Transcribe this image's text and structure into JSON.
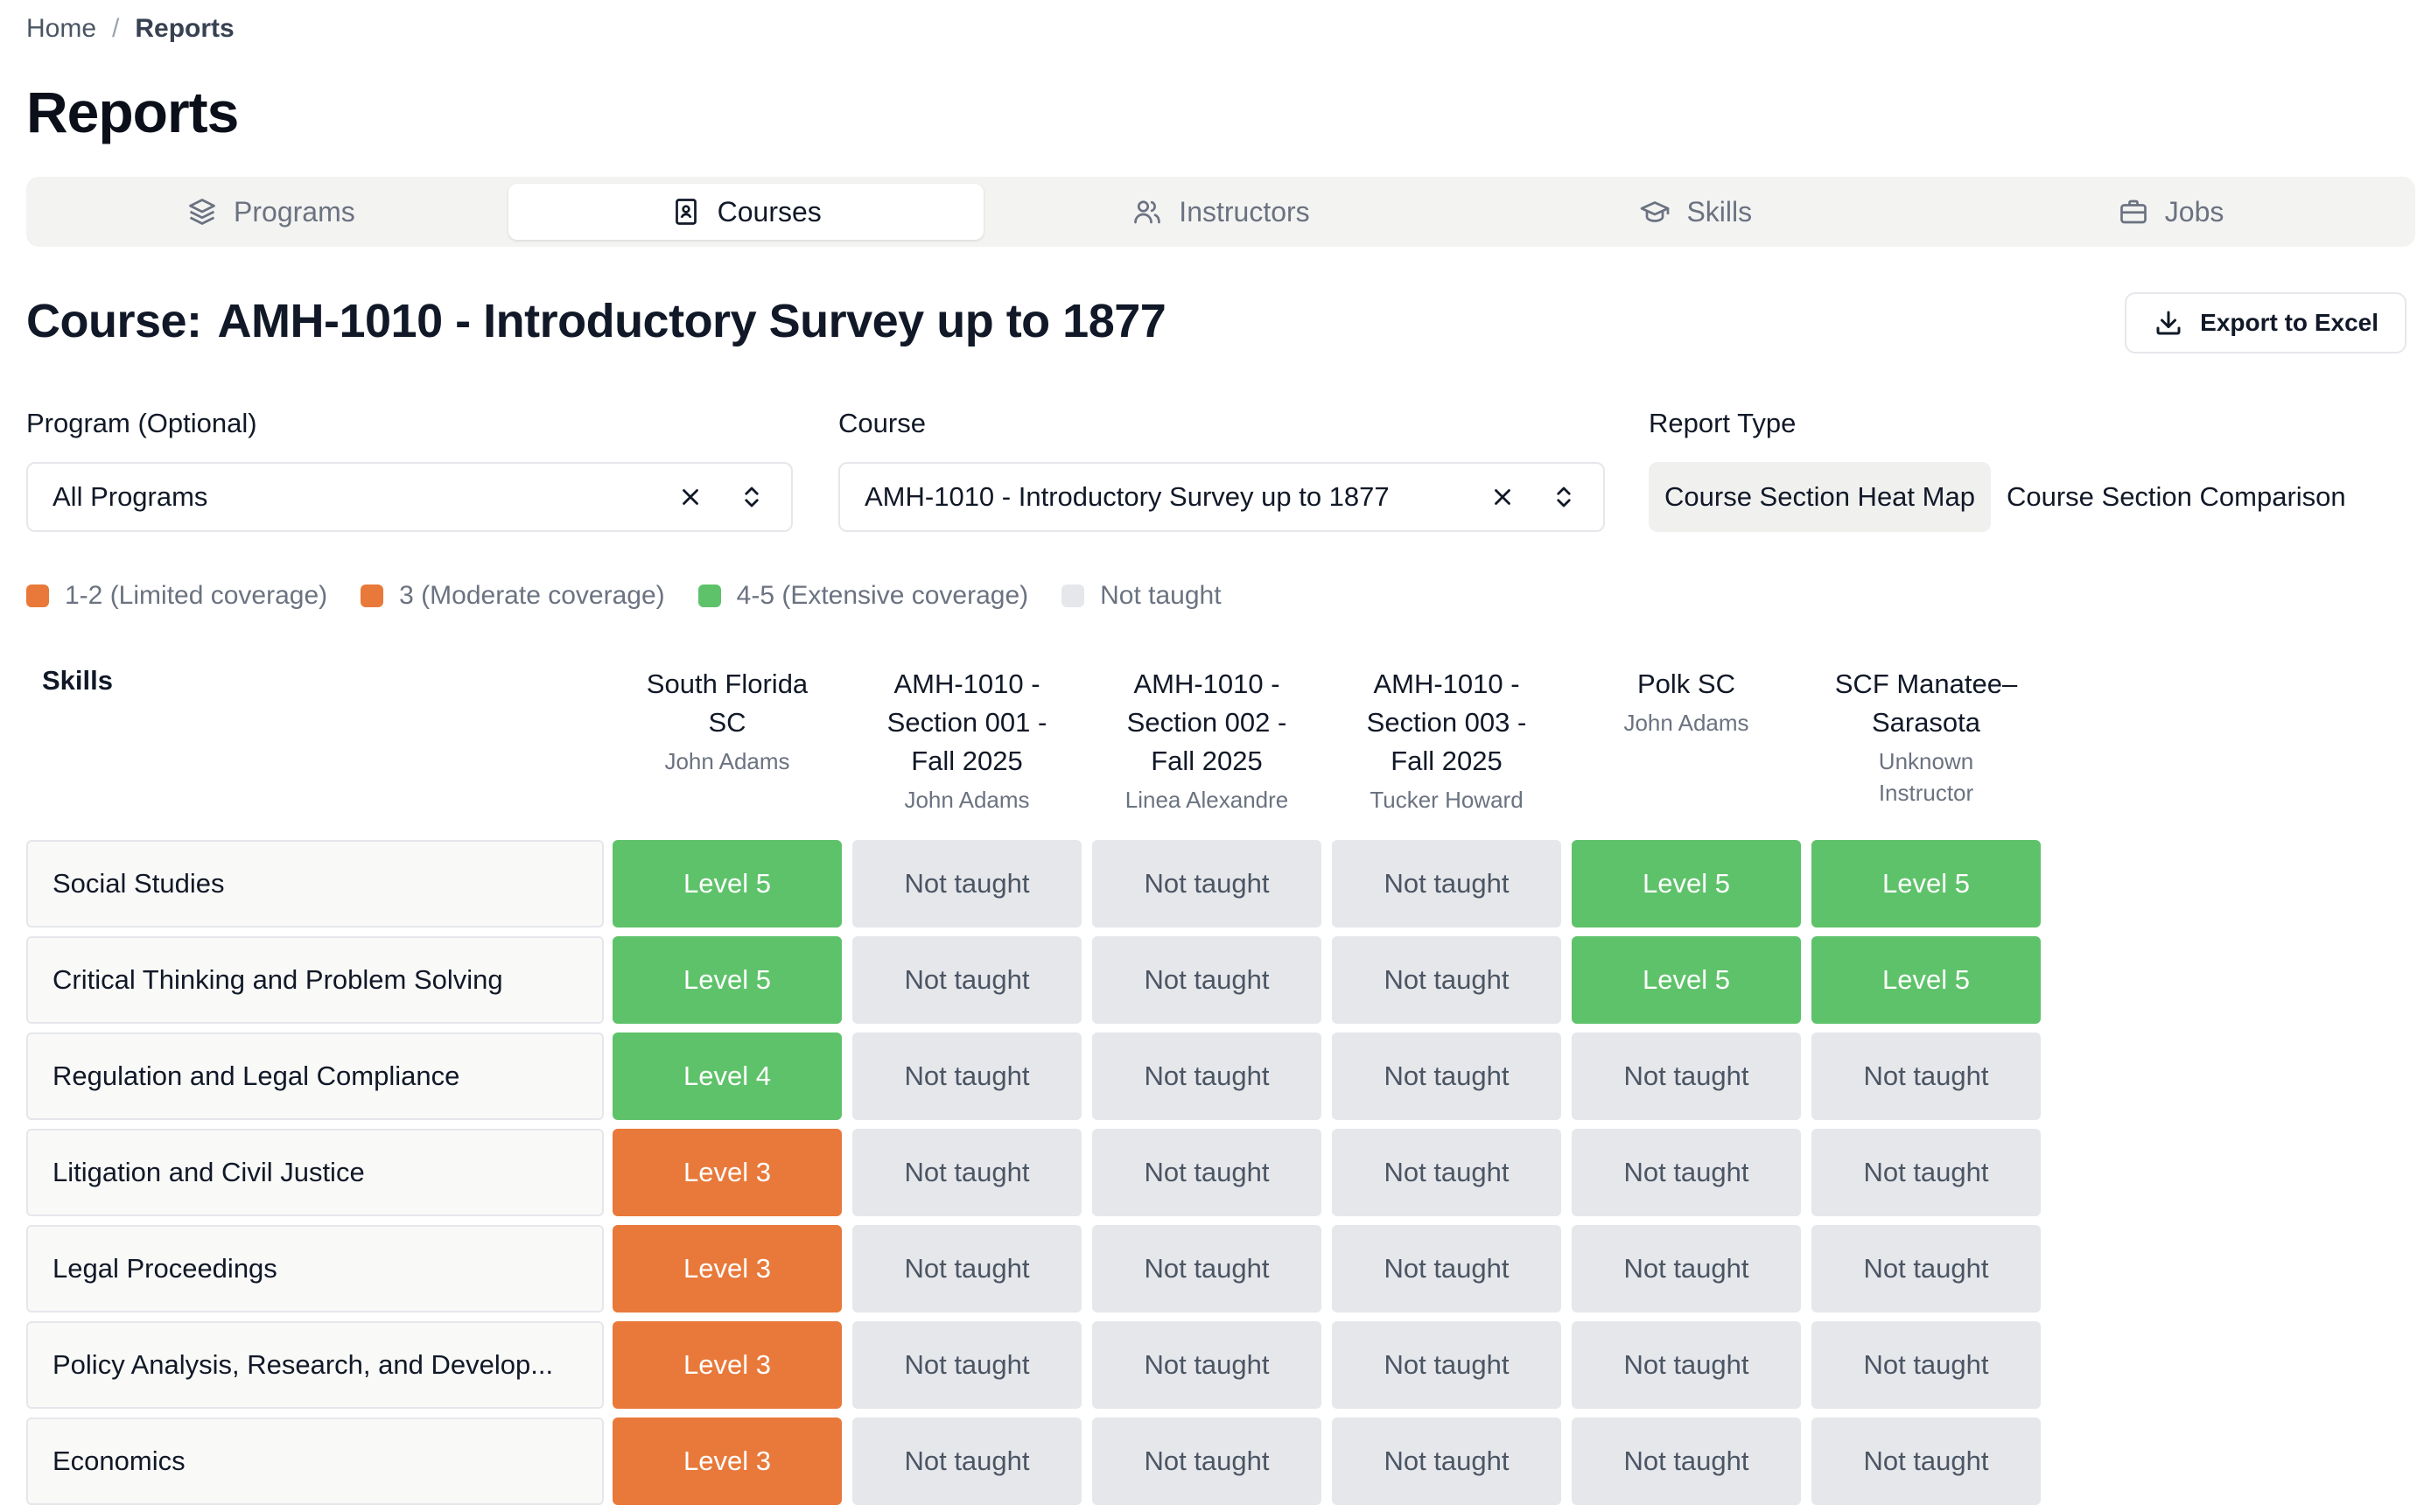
{
  "breadcrumb": {
    "home": "Home",
    "separator": "/",
    "current": "Reports"
  },
  "page_title": "Reports",
  "tabs": [
    {
      "label": "Programs",
      "icon": "layers-icon",
      "active": false
    },
    {
      "label": "Courses",
      "icon": "book-icon",
      "active": true
    },
    {
      "label": "Instructors",
      "icon": "users-icon",
      "active": false
    },
    {
      "label": "Skills",
      "icon": "graduation-cap-icon",
      "active": false
    },
    {
      "label": "Jobs",
      "icon": "briefcase-icon",
      "active": false
    }
  ],
  "course": {
    "prefix": "Course:",
    "name": "AMH-1010 - Introductory Survey up to 1877"
  },
  "export_label": "Export to Excel",
  "filters": {
    "program": {
      "label": "Program (Optional)",
      "value": "All Programs"
    },
    "course": {
      "label": "Course",
      "value": "AMH-1010 - Introductory Survey up to 1877"
    },
    "report_type": {
      "label": "Report Type",
      "options": [
        "Course Section Heat Map",
        "Course Section Comparison"
      ],
      "selected": "Course Section Heat Map"
    }
  },
  "legend": [
    {
      "label": "1-2 (Limited coverage)",
      "color": "#e8793a"
    },
    {
      "label": "3 (Moderate coverage)",
      "color": "#e8793a"
    },
    {
      "label": "4-5 (Extensive coverage)",
      "color": "#5ec26a"
    },
    {
      "label": "Not taught",
      "color": "#e5e7eb"
    }
  ],
  "table": {
    "skills_header": "Skills",
    "columns": [
      {
        "title_lines": [
          "South Florida",
          "SC"
        ],
        "instructor_lines": [
          "John Adams"
        ]
      },
      {
        "title_lines": [
          "AMH-1010 -",
          "Section 001 -",
          "Fall 2025"
        ],
        "instructor_lines": [
          "John Adams"
        ]
      },
      {
        "title_lines": [
          "AMH-1010 -",
          "Section 002 -",
          "Fall 2025"
        ],
        "instructor_lines": [
          "Linea Alexandre"
        ]
      },
      {
        "title_lines": [
          "AMH-1010 -",
          "Section 003 -",
          "Fall 2025"
        ],
        "instructor_lines": [
          "Tucker Howard"
        ]
      },
      {
        "title_lines": [
          "Polk SC"
        ],
        "instructor_lines": [
          "John Adams"
        ]
      },
      {
        "title_lines": [
          "SCF Manatee–",
          "Sarasota"
        ],
        "instructor_lines": [
          "Unknown",
          "Instructor"
        ]
      }
    ],
    "rows": [
      {
        "skill": "Social Studies",
        "cells": [
          "Level 5",
          "Not taught",
          "Not taught",
          "Not taught",
          "Level 5",
          "Level 5"
        ]
      },
      {
        "skill": "Critical Thinking and Problem Solving",
        "cells": [
          "Level 5",
          "Not taught",
          "Not taught",
          "Not taught",
          "Level 5",
          "Level 5"
        ]
      },
      {
        "skill": "Regulation and Legal Compliance",
        "cells": [
          "Level 4",
          "Not taught",
          "Not taught",
          "Not taught",
          "Not taught",
          "Not taught"
        ]
      },
      {
        "skill": "Litigation and Civil Justice",
        "cells": [
          "Level 3",
          "Not taught",
          "Not taught",
          "Not taught",
          "Not taught",
          "Not taught"
        ]
      },
      {
        "skill": "Legal Proceedings",
        "cells": [
          "Level 3",
          "Not taught",
          "Not taught",
          "Not taught",
          "Not taught",
          "Not taught"
        ]
      },
      {
        "skill": "Policy Analysis, Research, and Develop...",
        "cells": [
          "Level 3",
          "Not taught",
          "Not taught",
          "Not taught",
          "Not taught",
          "Not taught"
        ]
      },
      {
        "skill": "Economics",
        "cells": [
          "Level 3",
          "Not taught",
          "Not taught",
          "Not taught",
          "Not taught",
          "Not taught"
        ]
      }
    ]
  }
}
